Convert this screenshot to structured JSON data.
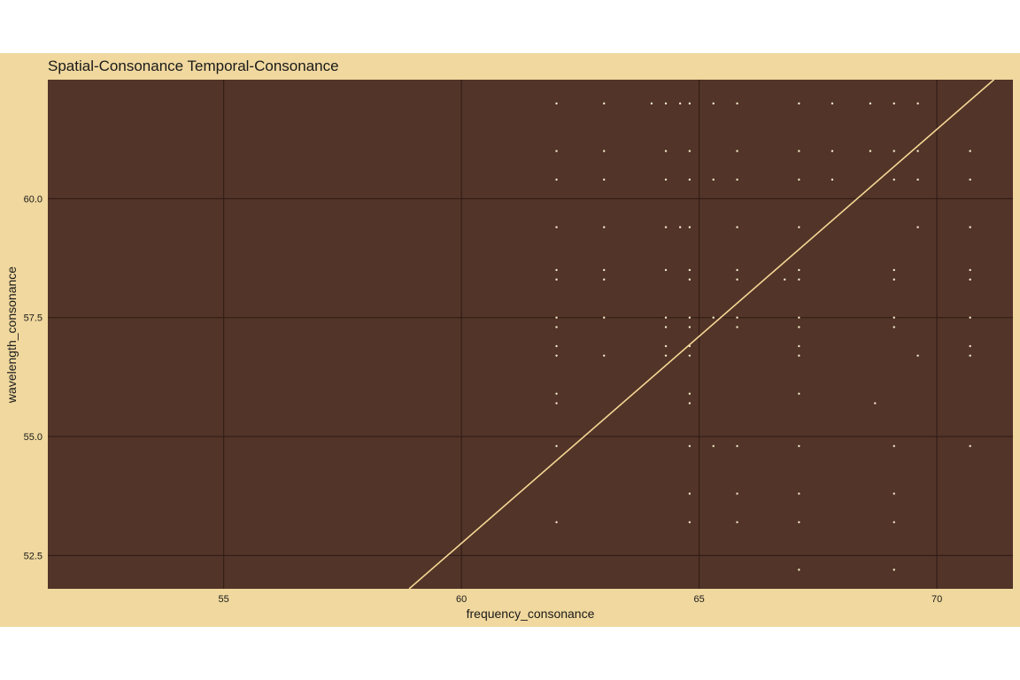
{
  "colors": {
    "plot_background": "#f0d89e",
    "panel": "#523428",
    "grid": "#2e1a14",
    "points": "#f5eacb",
    "fit_line": "#f5d795",
    "text": "#1a1a1a"
  },
  "chart_data": {
    "type": "scatter",
    "title": "Spatial-Consonance Temporal-Consonance",
    "xlabel": "frequency_consonance",
    "ylabel": "wavelength_consonance",
    "xlim": [
      51.3,
      71.6
    ],
    "ylim": [
      51.8,
      62.5
    ],
    "xticks": [
      55,
      60,
      65,
      70
    ],
    "yticks": [
      52.5,
      55,
      57.5,
      60
    ],
    "xtick_labels": [
      "55",
      "60",
      "65",
      "70"
    ],
    "ytick_labels": [
      "52.5",
      "55.0",
      "57.5",
      "60.0"
    ],
    "grid": true,
    "legend": "none",
    "points": [
      [
        62.0,
        62.0
      ],
      [
        63.0,
        62.0
      ],
      [
        64.0,
        62.0
      ],
      [
        64.3,
        62.0
      ],
      [
        64.6,
        62.0
      ],
      [
        64.8,
        62.0
      ],
      [
        65.3,
        62.0
      ],
      [
        65.8,
        62.0
      ],
      [
        67.1,
        62.0
      ],
      [
        67.8,
        62.0
      ],
      [
        68.6,
        62.0
      ],
      [
        69.1,
        62.0
      ],
      [
        69.6,
        62.0
      ],
      [
        62.0,
        61.0
      ],
      [
        63.0,
        61.0
      ],
      [
        64.3,
        61.0
      ],
      [
        64.8,
        61.0
      ],
      [
        65.8,
        61.0
      ],
      [
        67.1,
        61.0
      ],
      [
        67.8,
        61.0
      ],
      [
        68.6,
        61.0
      ],
      [
        69.1,
        61.0
      ],
      [
        69.6,
        61.0
      ],
      [
        70.7,
        61.0
      ],
      [
        62.0,
        60.4
      ],
      [
        63.0,
        60.4
      ],
      [
        64.3,
        60.4
      ],
      [
        64.8,
        60.4
      ],
      [
        65.3,
        60.4
      ],
      [
        65.8,
        60.4
      ],
      [
        67.1,
        60.4
      ],
      [
        67.8,
        60.4
      ],
      [
        69.1,
        60.4
      ],
      [
        69.6,
        60.4
      ],
      [
        70.7,
        60.4
      ],
      [
        62.0,
        59.4
      ],
      [
        63.0,
        59.4
      ],
      [
        64.3,
        59.4
      ],
      [
        64.6,
        59.4
      ],
      [
        64.8,
        59.4
      ],
      [
        65.8,
        59.4
      ],
      [
        67.1,
        59.4
      ],
      [
        69.6,
        59.4
      ],
      [
        70.7,
        59.4
      ],
      [
        62.0,
        58.5
      ],
      [
        63.0,
        58.5
      ],
      [
        64.3,
        58.5
      ],
      [
        64.8,
        58.5
      ],
      [
        65.8,
        58.5
      ],
      [
        67.1,
        58.5
      ],
      [
        69.1,
        58.5
      ],
      [
        70.7,
        58.5
      ],
      [
        62.0,
        58.3
      ],
      [
        63.0,
        58.3
      ],
      [
        64.8,
        58.3
      ],
      [
        65.8,
        58.3
      ],
      [
        66.8,
        58.3
      ],
      [
        67.1,
        58.3
      ],
      [
        69.1,
        58.3
      ],
      [
        70.7,
        58.3
      ],
      [
        62.0,
        57.5
      ],
      [
        63.0,
        57.5
      ],
      [
        64.3,
        57.5
      ],
      [
        64.8,
        57.5
      ],
      [
        65.3,
        57.5
      ],
      [
        65.8,
        57.5
      ],
      [
        67.1,
        57.5
      ],
      [
        69.1,
        57.5
      ],
      [
        70.7,
        57.5
      ],
      [
        62.0,
        57.3
      ],
      [
        64.3,
        57.3
      ],
      [
        64.8,
        57.3
      ],
      [
        65.8,
        57.3
      ],
      [
        67.1,
        57.3
      ],
      [
        69.1,
        57.3
      ],
      [
        62.0,
        56.9
      ],
      [
        64.3,
        56.9
      ],
      [
        64.8,
        56.9
      ],
      [
        67.1,
        56.9
      ],
      [
        70.7,
        56.9
      ],
      [
        62.0,
        56.7
      ],
      [
        63.0,
        56.7
      ],
      [
        64.3,
        56.7
      ],
      [
        64.8,
        56.7
      ],
      [
        67.1,
        56.7
      ],
      [
        69.6,
        56.7
      ],
      [
        70.7,
        56.7
      ],
      [
        62.0,
        55.9
      ],
      [
        64.8,
        55.9
      ],
      [
        67.1,
        55.9
      ],
      [
        62.0,
        55.7
      ],
      [
        64.8,
        55.7
      ],
      [
        68.7,
        55.7
      ],
      [
        62.0,
        54.8
      ],
      [
        64.8,
        54.8
      ],
      [
        65.3,
        54.8
      ],
      [
        65.8,
        54.8
      ],
      [
        67.1,
        54.8
      ],
      [
        69.1,
        54.8
      ],
      [
        70.7,
        54.8
      ],
      [
        64.8,
        53.8
      ],
      [
        65.8,
        53.8
      ],
      [
        67.1,
        53.8
      ],
      [
        69.1,
        53.8
      ],
      [
        62.0,
        53.2
      ],
      [
        64.8,
        53.2
      ],
      [
        65.8,
        53.2
      ],
      [
        67.1,
        53.2
      ],
      [
        69.1,
        53.2
      ],
      [
        67.1,
        52.2
      ],
      [
        69.1,
        52.2
      ]
    ],
    "fit_line": {
      "x": [
        58.9,
        71.2
      ],
      "y": [
        51.8,
        62.5
      ]
    }
  }
}
